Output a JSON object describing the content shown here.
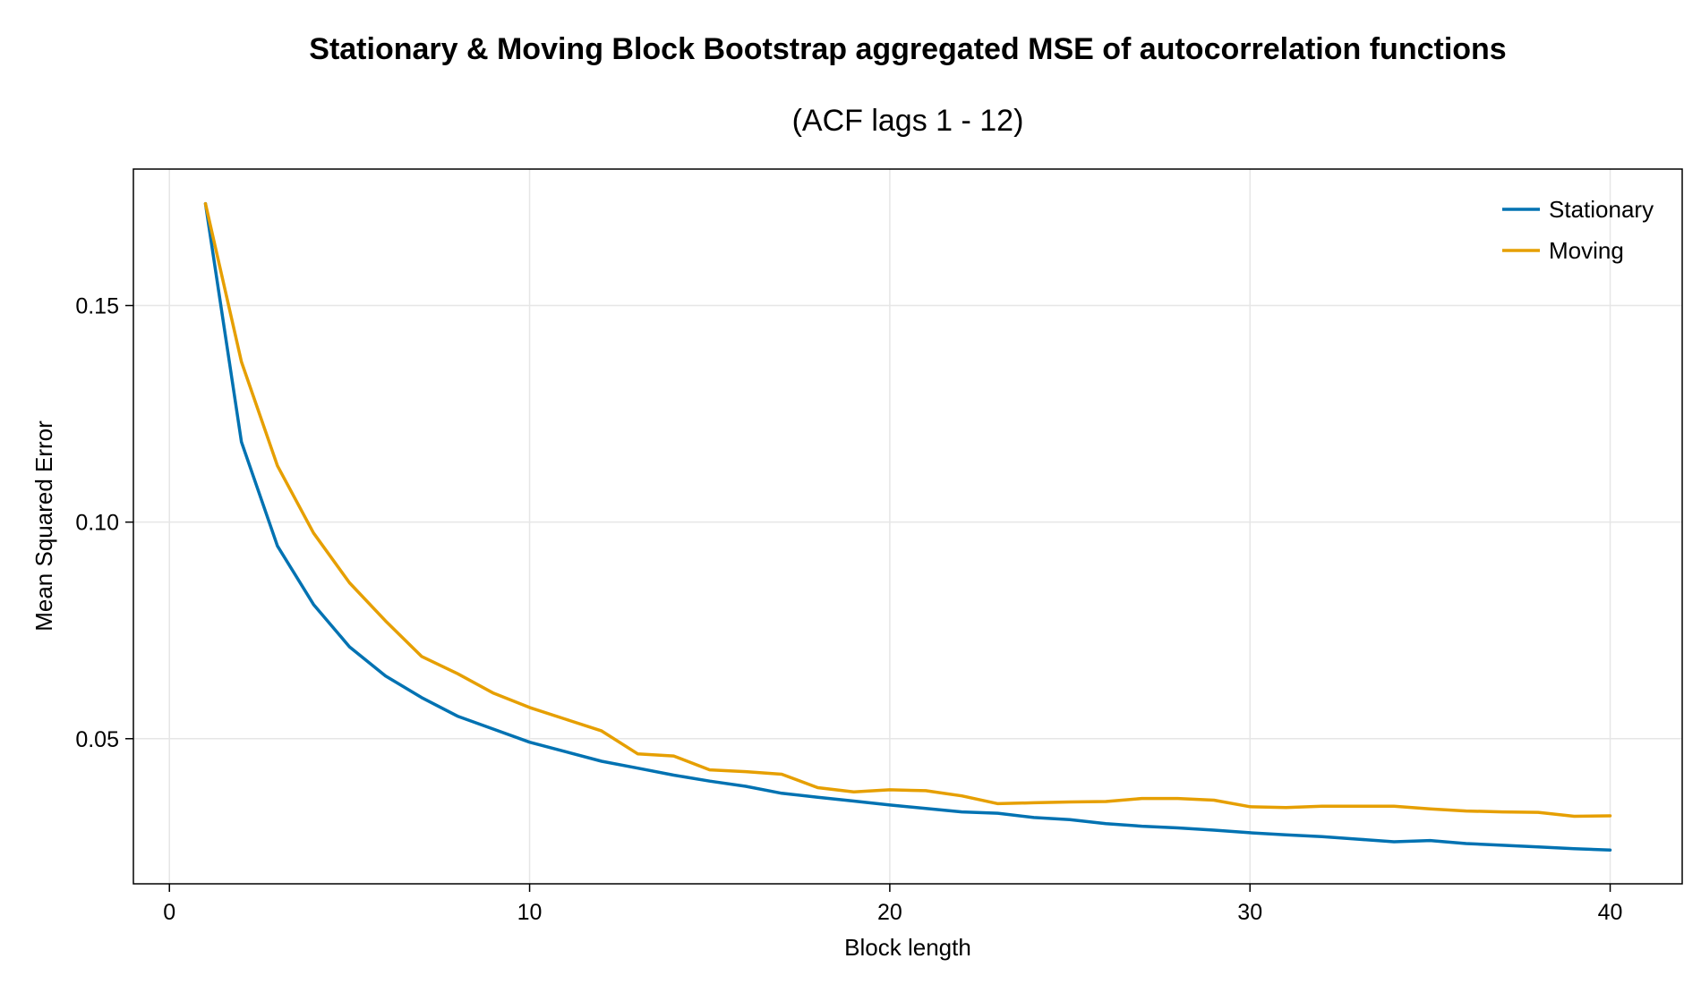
{
  "chart_data": {
    "type": "line",
    "title": "Stationary & Moving Block Bootstrap aggregated MSE of autocorrelation functions",
    "subtitle": "(ACF lags 1 - 12)",
    "xlabel": "Block length",
    "ylabel": "Mean Squared Error",
    "xlim": [
      -1,
      42
    ],
    "ylim": [
      0.0165,
      0.1815
    ],
    "xticks": [
      0,
      10,
      20,
      30,
      40
    ],
    "xtick_labels": [
      "0",
      "10",
      "20",
      "30",
      "40"
    ],
    "yticks": [
      0.05,
      0.1,
      0.15
    ],
    "ytick_labels": [
      "0.05",
      "0.10",
      "0.15"
    ],
    "grid": true,
    "legend_position": "top-right",
    "x": [
      1,
      2,
      3,
      4,
      5,
      6,
      7,
      8,
      9,
      10,
      11,
      12,
      13,
      14,
      15,
      16,
      17,
      18,
      19,
      20,
      21,
      22,
      23,
      24,
      25,
      26,
      27,
      28,
      29,
      30,
      31,
      32,
      33,
      34,
      35,
      36,
      37,
      38,
      39,
      40
    ],
    "series": [
      {
        "name": "Stationary",
        "color": "#0072B2",
        "values": [
          0.1735,
          0.1185,
          0.0945,
          0.081,
          0.0712,
          0.0645,
          0.0595,
          0.0552,
          0.0522,
          0.0492,
          0.047,
          0.0448,
          0.0432,
          0.0416,
          0.0402,
          0.039,
          0.0374,
          0.0365,
          0.0356,
          0.0347,
          0.0339,
          0.0331,
          0.0328,
          0.0318,
          0.0313,
          0.0304,
          0.0298,
          0.0294,
          0.0289,
          0.0283,
          0.0278,
          0.0274,
          0.0268,
          0.0262,
          0.0265,
          0.0258,
          0.0254,
          0.025,
          0.0246,
          0.0243
        ]
      },
      {
        "name": "Moving",
        "color": "#E69F00",
        "values": [
          0.1735,
          0.137,
          0.113,
          0.0975,
          0.086,
          0.0772,
          0.069,
          0.065,
          0.0605,
          0.0572,
          0.0545,
          0.0518,
          0.0465,
          0.046,
          0.0428,
          0.0424,
          0.0418,
          0.0387,
          0.0377,
          0.0382,
          0.038,
          0.0368,
          0.035,
          0.0352,
          0.0354,
          0.0355,
          0.0362,
          0.0362,
          0.0358,
          0.0343,
          0.0341,
          0.0344,
          0.0344,
          0.0344,
          0.0338,
          0.0333,
          0.0331,
          0.033,
          0.0321,
          0.0322
        ]
      }
    ]
  }
}
